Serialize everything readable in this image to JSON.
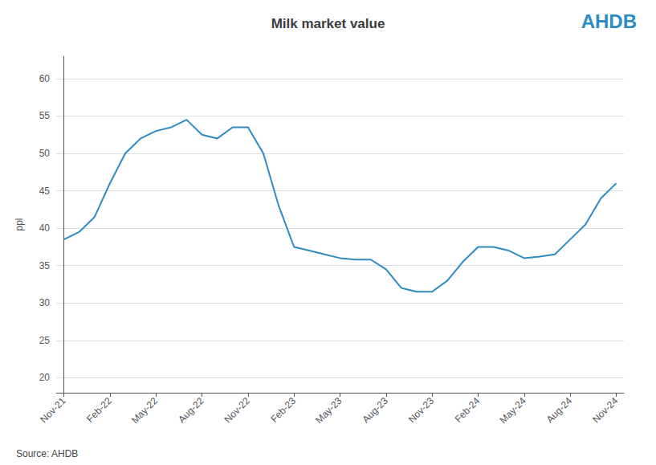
{
  "chart_data": {
    "type": "line",
    "title": "Milk market value",
    "ylabel": "ppl",
    "annotations": [
      "Source: AHDB",
      "AHDB"
    ],
    "x": [
      0,
      1,
      2,
      3,
      4,
      5,
      6,
      7,
      8,
      9,
      10,
      11,
      12,
      13,
      14,
      15,
      16,
      17,
      18,
      19,
      20,
      21,
      22,
      23,
      24,
      25,
      26,
      27,
      28,
      29,
      30,
      31,
      32,
      33,
      34,
      35,
      36
    ],
    "values": [
      38.5,
      39.5,
      41.5,
      46.0,
      50.0,
      52.0,
      53.0,
      53.5,
      54.5,
      52.5,
      52.0,
      53.5,
      53.5,
      50.0,
      43.0,
      37.5,
      37.0,
      36.5,
      36.0,
      35.8,
      35.8,
      34.5,
      32.0,
      31.5,
      31.5,
      33.0,
      35.5,
      37.5,
      37.5,
      37.0,
      36.0,
      36.2,
      36.5,
      38.5,
      40.5,
      44.0,
      46.0
    ],
    "color": "#2E8BC0",
    "xlim": [
      -0.5,
      36.5
    ],
    "xticks": [
      {
        "value": 0,
        "label": "Nov-21"
      },
      {
        "value": 3,
        "label": "Feb-22"
      },
      {
        "value": 6,
        "label": "May-22"
      },
      {
        "value": 9,
        "label": "Aug-22"
      },
      {
        "value": 12,
        "label": "Nov-22"
      },
      {
        "value": 15,
        "label": "Feb-23"
      },
      {
        "value": 18,
        "label": "May-23"
      },
      {
        "value": 21,
        "label": "Aug-23"
      },
      {
        "value": 24,
        "label": "Nov-23"
      },
      {
        "value": 27,
        "label": "Feb-24"
      },
      {
        "value": 30,
        "label": "May-24"
      },
      {
        "value": 33,
        "label": "Aug-24"
      },
      {
        "value": 36,
        "label": "Nov-24"
      }
    ],
    "ylim": [
      18,
      63
    ],
    "yticks": [
      20,
      25,
      30,
      35,
      40,
      45,
      50,
      55,
      60
    ],
    "grid": true
  }
}
